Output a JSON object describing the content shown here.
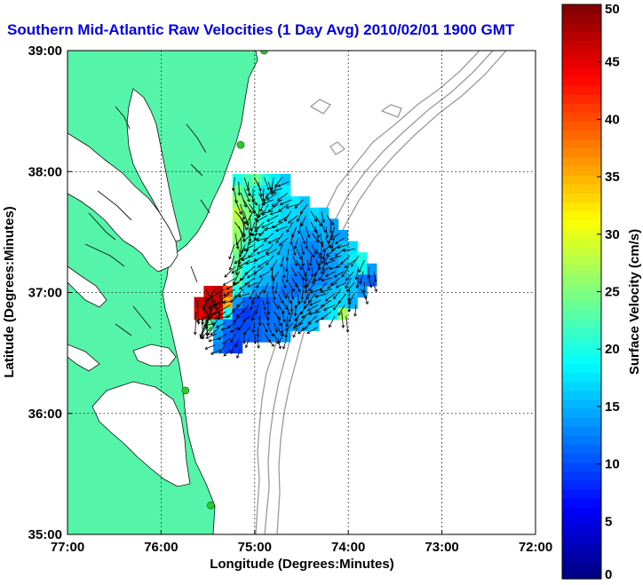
{
  "chart_data": {
    "type": "heatmap",
    "title": "Southern Mid-Atlantic Raw Velocities (1 Day Avg) 2010/02/01 1900 GMT",
    "xlabel": "Longitude (Degrees:Minutes)",
    "ylabel": "Latitude (Degrees:Minutes)",
    "xlim": [
      -77,
      -72
    ],
    "ylim": [
      35,
      39
    ],
    "xticks": [
      -77,
      -76,
      -75,
      -74,
      -73,
      -72
    ],
    "xtick_labels": [
      "77:00",
      "76:00",
      "75:00",
      "74:00",
      "73:00",
      "72:00"
    ],
    "yticks": [
      35,
      36,
      37,
      38,
      39
    ],
    "ytick_labels": [
      "35:00",
      "36:00",
      "37:00",
      "38:00",
      "39:00"
    ],
    "grid": "dotted",
    "colorbar": {
      "label": "Surface Velocity (cm/s)",
      "min": 0,
      "max": 50,
      "ticks": [
        0,
        5,
        10,
        15,
        20,
        25,
        30,
        35,
        40,
        45,
        50
      ],
      "tick_labels": [
        "0",
        "5",
        "10",
        "15",
        "20",
        "25",
        "30",
        "35",
        "40",
        "45",
        "50"
      ],
      "colormap": "jet"
    },
    "colors": {
      "land": "#55f5a9",
      "coastline": "#000000",
      "bathymetry": "#9a9a9a",
      "station": "#2fc92f",
      "title": "#0000ff"
    },
    "stations": [
      {
        "lon": -74.9,
        "lat": 39.0
      },
      {
        "lon": -75.15,
        "lat": 38.22
      },
      {
        "lon": -75.74,
        "lat": 36.19
      },
      {
        "lon": -75.47,
        "lat": 35.24
      }
    ],
    "velocity_field": {
      "lon_range": [
        -75.75,
        -73.7
      ],
      "lat_range": [
        36.5,
        37.98
      ],
      "speed_grid": [
        [
          null,
          null,
          null,
          null,
          null,
          20,
          22,
          24,
          20,
          18,
          16,
          null,
          null,
          null,
          null,
          null,
          null,
          null,
          null,
          null
        ],
        [
          null,
          null,
          null,
          null,
          null,
          24,
          22,
          20,
          18,
          17,
          18,
          null,
          null,
          null,
          null,
          null,
          null,
          null,
          null,
          null
        ],
        [
          null,
          null,
          null,
          null,
          null,
          26,
          24,
          21,
          18,
          17,
          17,
          18,
          16,
          null,
          null,
          null,
          null,
          null,
          null,
          null
        ],
        [
          null,
          null,
          null,
          null,
          null,
          28,
          25,
          22,
          19,
          18,
          17,
          17,
          16,
          17,
          16,
          null,
          null,
          null,
          null,
          null
        ],
        [
          null,
          null,
          null,
          null,
          null,
          27,
          24,
          21,
          19,
          18,
          17,
          16,
          15,
          16,
          15,
          14,
          null,
          null,
          null,
          null
        ],
        [
          null,
          null,
          null,
          null,
          null,
          26,
          22,
          20,
          18,
          17,
          16,
          15,
          14,
          14,
          15,
          14,
          14,
          null,
          null,
          null
        ],
        [
          null,
          null,
          null,
          null,
          null,
          25,
          21,
          19,
          17,
          16,
          15,
          14,
          13,
          13,
          14,
          15,
          16,
          17,
          null,
          null
        ],
        [
          null,
          null,
          null,
          null,
          null,
          24,
          20,
          18,
          17,
          16,
          15,
          14,
          13,
          12,
          13,
          14,
          16,
          18,
          20,
          null
        ],
        [
          null,
          null,
          null,
          null,
          null,
          23,
          19,
          17,
          16,
          15,
          14,
          13,
          12,
          12,
          13,
          14,
          15,
          17,
          19,
          14
        ],
        [
          null,
          null,
          null,
          null,
          null,
          23,
          18,
          16,
          15,
          14,
          13,
          12,
          12,
          13,
          13,
          14,
          15,
          16,
          12,
          11
        ],
        [
          null,
          null,
          45,
          47,
          40,
          20,
          16,
          14,
          13,
          13,
          12,
          12,
          13,
          14,
          15,
          16,
          17,
          16,
          14,
          null
        ],
        [
          null,
          46,
          48,
          46,
          35,
          14,
          11,
          10,
          11,
          12,
          13,
          14,
          14,
          15,
          16,
          17,
          17,
          15,
          null,
          null
        ],
        [
          null,
          44,
          47,
          43,
          20,
          10,
          9,
          10,
          11,
          12,
          13,
          14,
          15,
          15,
          16,
          18,
          27,
          null,
          null,
          null
        ],
        [
          null,
          null,
          24,
          16,
          12,
          10,
          10,
          11,
          12,
          12,
          13,
          14,
          15,
          16,
          null,
          null,
          null,
          null,
          null,
          null
        ],
        [
          null,
          null,
          null,
          14,
          11,
          10,
          11,
          11,
          12,
          13,
          14,
          null,
          null,
          null,
          null,
          null,
          null,
          null,
          null,
          null
        ],
        [
          null,
          null,
          null,
          13,
          10,
          9,
          null,
          null,
          null,
          null,
          null,
          null,
          null,
          null,
          null,
          null,
          null,
          null,
          null,
          null
        ]
      ]
    }
  }
}
